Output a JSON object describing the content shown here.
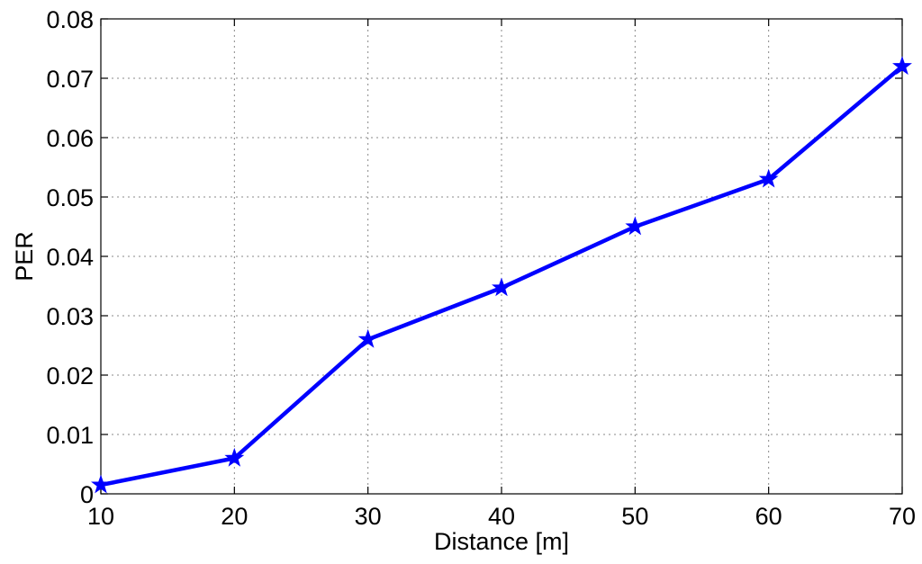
{
  "chart_data": {
    "type": "line",
    "title": "",
    "xlabel": "Distance [m]",
    "ylabel": "PER",
    "xlim": [
      10,
      70
    ],
    "ylim": [
      0,
      0.08
    ],
    "xticks": [
      10,
      20,
      30,
      40,
      50,
      60,
      70
    ],
    "yticks": [
      0,
      0.01,
      0.02,
      0.03,
      0.04,
      0.05,
      0.06,
      0.07,
      0.08
    ],
    "xtick_labels": [
      "10",
      "20",
      "30",
      "40",
      "50",
      "60",
      "70"
    ],
    "ytick_labels": [
      "0",
      "0.01",
      "0.02",
      "0.03",
      "0.04",
      "0.05",
      "0.06",
      "0.07",
      "0.08"
    ],
    "grid": true,
    "legend": "none",
    "series": [
      {
        "x": [
          10,
          20,
          30,
          40,
          50,
          60,
          70
        ],
        "values": [
          0.0015,
          0.006,
          0.026,
          0.0347,
          0.045,
          0.053,
          0.072
        ],
        "color": "#0000ff",
        "marker": "star"
      }
    ]
  }
}
